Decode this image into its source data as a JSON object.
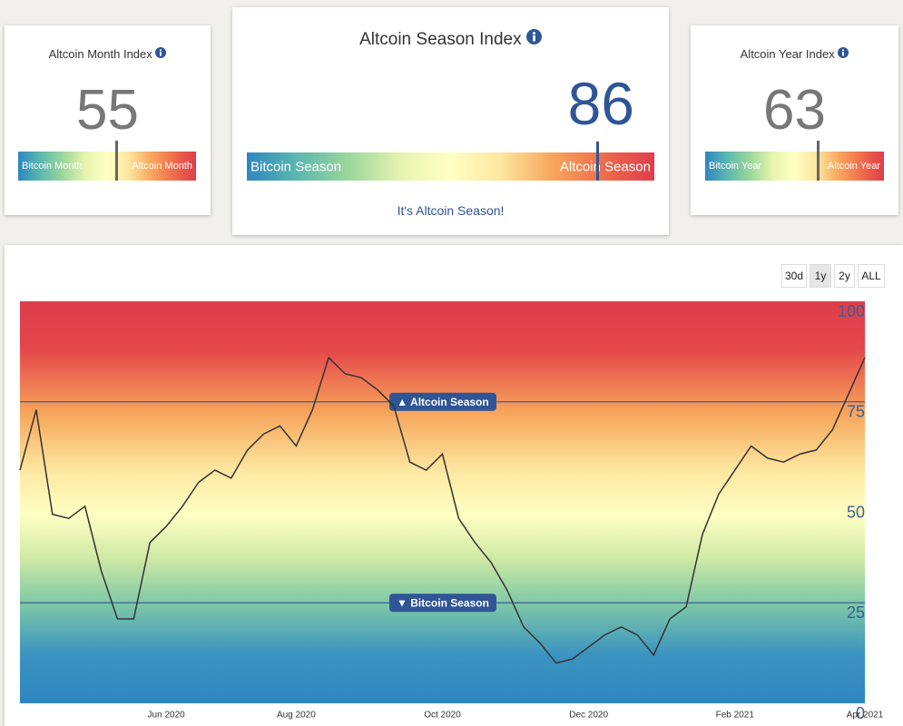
{
  "gauges": [
    {
      "title": "Altcoin Month Index",
      "value": 55,
      "left_label": "Bitcoin Month",
      "right_label": "Altcoin Month"
    },
    {
      "title": "Altcoin Season Index",
      "value": 86,
      "left_label": "Bitcoin Season",
      "right_label": "Altcoin Season",
      "status": "It's Altcoin Season!"
    },
    {
      "title": "Altcoin Year Index",
      "value": 63,
      "left_label": "Bitcoin Year",
      "right_label": "Altcoin Year"
    }
  ],
  "range_buttons": [
    "30d",
    "1y",
    "2y",
    "ALL"
  ],
  "active_button": "1y",
  "chart_data": {
    "type": "line",
    "categories": [
      null,
      null,
      null,
      null,
      null,
      null,
      null,
      null,
      null,
      "Jun 2020",
      null,
      null,
      null,
      null,
      null,
      null,
      null,
      "Aug 2020",
      null,
      null,
      null,
      null,
      null,
      null,
      null,
      null,
      "Oct 2020",
      null,
      null,
      null,
      null,
      null,
      null,
      null,
      null,
      "Dec 2020",
      null,
      null,
      null,
      null,
      null,
      null,
      null,
      null,
      "Feb 2021",
      null,
      null,
      null,
      null,
      null,
      null,
      null,
      "Apr 2021"
    ],
    "series": [
      {
        "color": "#333333",
        "values": [
          58,
          73,
          47,
          46,
          49,
          33,
          21,
          21,
          40,
          44,
          49,
          55,
          58,
          56,
          63,
          67,
          69,
          64,
          73,
          86,
          82,
          81,
          78,
          74,
          60,
          58,
          62,
          46,
          40,
          35,
          28,
          19,
          15,
          10,
          11,
          14,
          17,
          19,
          17,
          12,
          21,
          24,
          42,
          52,
          58,
          64,
          61,
          60,
          62,
          63,
          68,
          77,
          86
        ]
      }
    ],
    "ylim": [
      0,
      100
    ],
    "yticks": [
      0,
      25,
      50,
      75,
      100
    ],
    "thresholds": [
      {
        "value": 75,
        "label": "▲ Altcoin Season"
      },
      {
        "value": 25,
        "label": "▼ Bitcoin Season"
      }
    ]
  }
}
